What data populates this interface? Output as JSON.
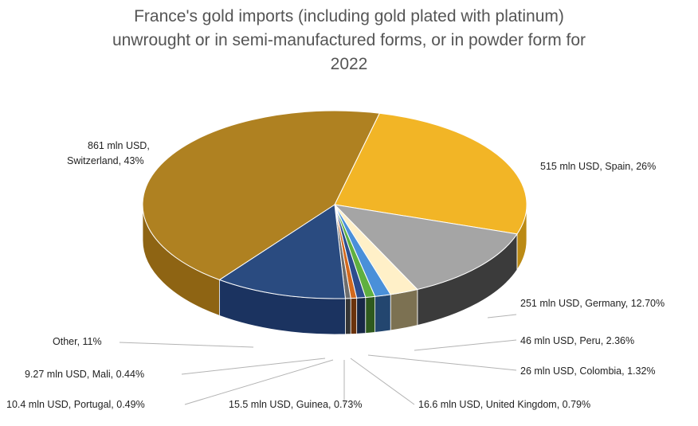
{
  "chart_data": {
    "type": "pie",
    "title_lines": [
      "France's gold imports (including gold plated with platinum)",
      "unwrought or in semi-manufactured forms, or in powder form for",
      "2022"
    ],
    "slices": [
      {
        "name": "Spain",
        "value": 515,
        "percent": 26,
        "color": "#F2B526",
        "side": "#BB8A14",
        "label_lines": [
          "515 mln USD, Spain, 26%"
        ]
      },
      {
        "name": "Germany",
        "value": 251,
        "percent": 12.7,
        "color": "#A5A5A5",
        "side": "#3B3B3B",
        "label_lines": [
          "251 mln USD, Germany, 12.70%"
        ]
      },
      {
        "name": "Peru",
        "value": 46,
        "percent": 2.36,
        "color": "#FFF0C8",
        "side": "#7C7152",
        "label_lines": [
          "46 mln USD, Peru, 2.36%"
        ]
      },
      {
        "name": "Colombia",
        "value": 26,
        "percent": 1.32,
        "color": "#4A90D9",
        "side": "#23466F",
        "label_lines": [
          "26 mln USD, Colombia, 1.32%"
        ]
      },
      {
        "name": "United Kingdom",
        "value": 16.6,
        "percent": 0.79,
        "color": "#5FB040",
        "side": "#2F5A1E",
        "label_lines": [
          "16.6 mln USD, United Kingdom, 0.79%"
        ]
      },
      {
        "name": "Guinea",
        "value": 15.5,
        "percent": 0.73,
        "color": "#2C4D8E",
        "side": "#172746",
        "label_lines": [
          "15.5 mln USD, Guinea, 0.73%"
        ]
      },
      {
        "name": "Portugal",
        "value": 10.4,
        "percent": 0.49,
        "color": "#D2691E",
        "side": "#6B330C",
        "label_lines": [
          "10.4 mln USD, Portugal, 0.49%"
        ]
      },
      {
        "name": "Mali",
        "value": 9.27,
        "percent": 0.44,
        "color": "#6D6D6D",
        "side": "#353535",
        "label_lines": [
          "9.27 mln USD, Mali, 0.44%"
        ]
      },
      {
        "name": "Other",
        "value": null,
        "percent": 11,
        "color": "#2A4B80",
        "side": "#1B3360",
        "label_lines": [
          "Other, 11%"
        ]
      },
      {
        "name": "Switzerland",
        "value": 861,
        "percent": 43,
        "color": "#AF8121",
        "side": "#8E6413",
        "label_lines": [
          "861 mln USD,",
          "Switzerland, 43%"
        ]
      }
    ],
    "unit": "mln USD"
  }
}
